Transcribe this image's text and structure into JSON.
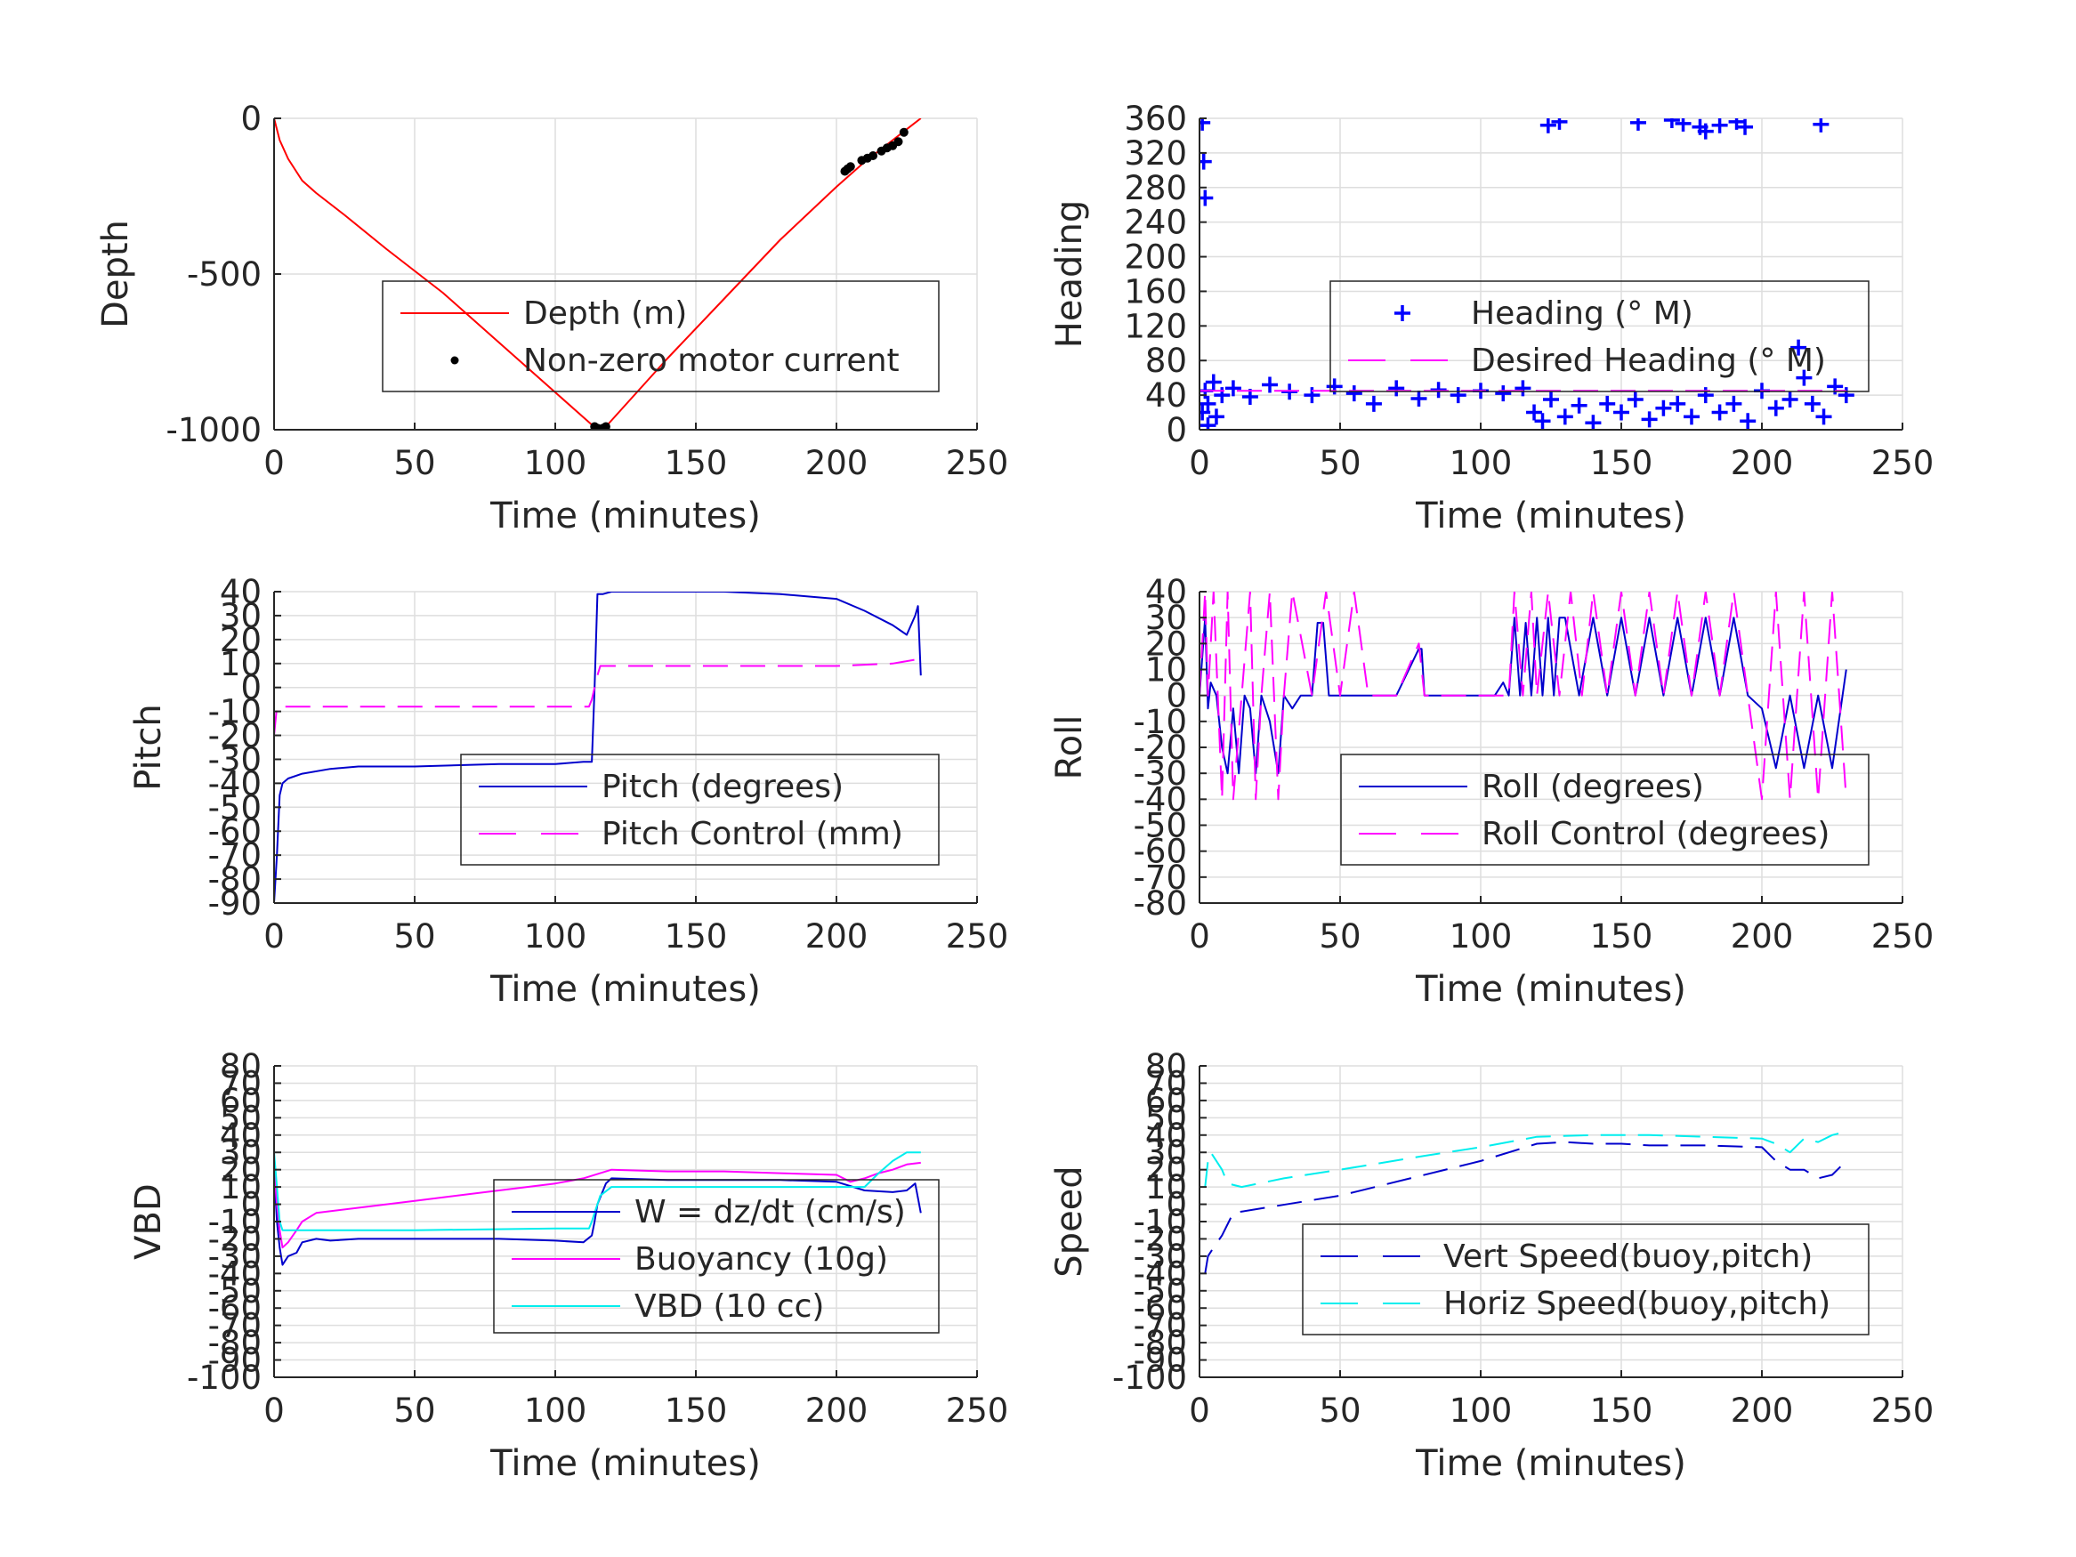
{
  "chart_data": [
    {
      "type": "line",
      "xlabel": "Time (minutes)",
      "ylabel": "Depth",
      "xlim": [
        0,
        250
      ],
      "ylim": [
        -1000,
        0
      ],
      "yticks": [
        0,
        -500,
        -1000
      ],
      "xticks": [
        0,
        50,
        100,
        150,
        200,
        250
      ],
      "grid": true,
      "legend_position": "bottom-right",
      "series": [
        {
          "name": "Depth (m)",
          "style": "solid",
          "color": "#ff0000",
          "x": [
            0,
            2,
            5,
            10,
            15,
            25,
            40,
            60,
            80,
            100,
            110,
            115,
            118,
            125,
            140,
            160,
            180,
            200,
            210,
            220,
            230
          ],
          "y": [
            0,
            -70,
            -130,
            -200,
            -240,
            -310,
            -420,
            -560,
            -720,
            -880,
            -960,
            -1000,
            -990,
            -920,
            -770,
            -580,
            -390,
            -220,
            -140,
            -70,
            0
          ]
        },
        {
          "name": "Non-zero motor current",
          "style": "markers",
          "color": "#000000",
          "x": [
            114,
            115,
            116,
            117,
            118,
            203,
            204,
            205,
            209,
            211,
            213,
            216,
            218,
            220,
            222,
            224
          ],
          "y": [
            -990,
            -995,
            -998,
            -995,
            -990,
            -170,
            -162,
            -155,
            -135,
            -128,
            -120,
            -105,
            -95,
            -88,
            -75,
            -45
          ]
        }
      ]
    },
    {
      "type": "scatter",
      "xlabel": "Time (minutes)",
      "ylabel": "Heading",
      "xlim": [
        0,
        250
      ],
      "ylim": [
        0,
        360
      ],
      "yticks": [
        0,
        40,
        80,
        120,
        160,
        200,
        240,
        280,
        320,
        360
      ],
      "xticks": [
        0,
        50,
        100,
        150,
        200,
        250
      ],
      "grid": true,
      "legend_position": "center-right",
      "series": [
        {
          "name": "Heading (° M)",
          "style": "markers-plus",
          "color": "#0000ff",
          "x": [
            1,
            1.5,
            2,
            1,
            2,
            3,
            5,
            8,
            12,
            18,
            25,
            32,
            40,
            48,
            55,
            62,
            70,
            78,
            85,
            92,
            100,
            108,
            115,
            119,
            122,
            125,
            130,
            135,
            140,
            145,
            150,
            155,
            160,
            165,
            170,
            175,
            180,
            185,
            190,
            195,
            200,
            205,
            210,
            213,
            215,
            218,
            222,
            226,
            230,
            124,
            128,
            156,
            168,
            172,
            178,
            180,
            185,
            191,
            194,
            221,
            3,
            6
          ],
          "y": [
            355,
            310,
            268,
            20,
            45,
            30,
            55,
            40,
            48,
            38,
            52,
            44,
            40,
            50,
            42,
            30,
            48,
            36,
            46,
            40,
            45,
            42,
            48,
            20,
            10,
            35,
            15,
            28,
            8,
            30,
            20,
            35,
            12,
            25,
            30,
            15,
            40,
            20,
            30,
            10,
            45,
            25,
            35,
            95,
            60,
            30,
            15,
            50,
            40,
            352,
            356,
            355,
            358,
            354,
            350,
            345,
            352,
            356,
            350,
            353,
            5,
            15
          ]
        },
        {
          "name": "Desired Heading (° M)",
          "style": "dashed",
          "color": "#ff00ff",
          "x": [
            0,
            230
          ],
          "y": [
            45,
            45
          ]
        }
      ]
    },
    {
      "type": "line",
      "xlabel": "Time (minutes)",
      "ylabel": "Pitch",
      "xlim": [
        0,
        250
      ],
      "ylim": [
        -90,
        40
      ],
      "yticks": [
        40,
        30,
        20,
        10,
        0,
        -10,
        -20,
        -30,
        -40,
        -50,
        -60,
        -70,
        -80,
        -90
      ],
      "xticks": [
        0,
        50,
        100,
        150,
        200,
        250
      ],
      "grid": true,
      "legend_position": "bottom-right",
      "series": [
        {
          "name": "Pitch (degrees)",
          "style": "solid",
          "color": "#0000cc",
          "x": [
            0,
            1,
            2,
            3,
            5,
            10,
            20,
            30,
            50,
            80,
            100,
            110,
            112,
            113,
            114,
            115,
            117,
            120,
            140,
            160,
            180,
            200,
            210,
            220,
            225,
            228,
            229,
            230
          ],
          "y": [
            -90,
            -70,
            -45,
            -40,
            -38,
            -36,
            -34,
            -33,
            -33,
            -32,
            -32,
            -31,
            -31,
            -31,
            0,
            39,
            39,
            40,
            40,
            40,
            39,
            37,
            32,
            26,
            22,
            30,
            34,
            5
          ]
        },
        {
          "name": "Pitch Control (mm)",
          "style": "dashed",
          "color": "#ff00ff",
          "x": [
            0,
            1,
            2,
            3,
            50,
            100,
            112,
            113,
            114,
            115,
            116,
            120,
            150,
            200,
            220,
            230
          ],
          "y": [
            -20,
            -8,
            -8,
            -8,
            -8,
            -8,
            -8,
            -5,
            0,
            5,
            9,
            9,
            9,
            9,
            10,
            12
          ]
        }
      ]
    },
    {
      "type": "line",
      "xlabel": "Time (minutes)",
      "ylabel": "Roll",
      "xlim": [
        0,
        250
      ],
      "ylim": [
        -80,
        40
      ],
      "yticks": [
        40,
        30,
        20,
        10,
        0,
        -10,
        -20,
        -30,
        -40,
        -50,
        -60,
        -70,
        -80
      ],
      "xticks": [
        0,
        50,
        100,
        150,
        200,
        250
      ],
      "grid": true,
      "legend_position": "bottom-right",
      "series": [
        {
          "name": "Roll (degrees)",
          "style": "solid",
          "color": "#0000cc",
          "x": [
            0,
            2,
            3,
            4,
            6,
            8,
            10,
            12,
            14,
            16,
            18,
            20,
            22,
            25,
            28,
            30,
            33,
            36,
            40,
            42,
            44,
            46,
            50,
            60,
            70,
            78,
            79,
            80,
            90,
            100,
            105,
            108,
            110,
            112,
            114,
            116,
            118,
            120,
            122,
            124,
            126,
            128,
            130,
            135,
            140,
            145,
            150,
            155,
            160,
            165,
            170,
            175,
            180,
            185,
            190,
            195,
            200,
            205,
            210,
            215,
            220,
            225,
            230
          ],
          "y": [
            0,
            30,
            -5,
            5,
            0,
            -20,
            -30,
            -5,
            -30,
            0,
            -5,
            -30,
            0,
            -10,
            -30,
            0,
            -5,
            0,
            0,
            28,
            28,
            0,
            0,
            0,
            0,
            18,
            18,
            0,
            0,
            0,
            0,
            5,
            0,
            30,
            0,
            28,
            0,
            30,
            0,
            30,
            0,
            30,
            30,
            0,
            30,
            0,
            30,
            0,
            30,
            0,
            30,
            0,
            30,
            0,
            30,
            0,
            -5,
            -28,
            0,
            -28,
            0,
            -28,
            10
          ]
        },
        {
          "name": "Roll Control (degrees)",
          "style": "dashed",
          "color": "#ff00ff",
          "x": [
            0,
            2,
            3,
            5,
            8,
            10,
            12,
            15,
            18,
            20,
            22,
            25,
            28,
            30,
            33,
            40,
            45,
            50,
            55,
            60,
            70,
            78,
            80,
            90,
            100,
            110,
            112,
            115,
            118,
            120,
            124,
            128,
            132,
            136,
            140,
            145,
            150,
            155,
            160,
            165,
            170,
            175,
            180,
            185,
            190,
            195,
            200,
            205,
            210,
            215,
            220,
            225,
            230
          ],
          "y": [
            0,
            40,
            0,
            40,
            -40,
            40,
            -40,
            0,
            40,
            -40,
            0,
            40,
            -40,
            0,
            40,
            0,
            40,
            0,
            40,
            0,
            0,
            20,
            0,
            0,
            0,
            0,
            40,
            0,
            40,
            0,
            40,
            0,
            40,
            0,
            40,
            0,
            40,
            0,
            40,
            0,
            40,
            0,
            40,
            0,
            40,
            0,
            -40,
            40,
            -40,
            40,
            -40,
            40,
            -40
          ]
        }
      ]
    },
    {
      "type": "line",
      "xlabel": "Time (minutes)",
      "ylabel": "VBD",
      "xlim": [
        0,
        250
      ],
      "ylim": [
        -100,
        80
      ],
      "yticks": [
        80,
        70,
        60,
        50,
        40,
        30,
        20,
        10,
        0,
        -10,
        -20,
        -30,
        -40,
        -50,
        -60,
        -70,
        -80,
        -90,
        -100
      ],
      "xticks": [
        0,
        50,
        100,
        150,
        200,
        250
      ],
      "grid": true,
      "legend_position": "bottom-right",
      "series": [
        {
          "name": "W = dz/dt (cm/s)",
          "style": "solid",
          "color": "#0000cc",
          "x": [
            0,
            1,
            2,
            3,
            5,
            8,
            10,
            15,
            20,
            30,
            50,
            80,
            100,
            110,
            113,
            114,
            115,
            118,
            120,
            140,
            160,
            180,
            200,
            210,
            220,
            225,
            228,
            230
          ],
          "y": [
            20,
            -10,
            -25,
            -35,
            -30,
            -28,
            -22,
            -20,
            -21,
            -20,
            -20,
            -20,
            -21,
            -22,
            -18,
            -10,
            0,
            12,
            15,
            14,
            14,
            14,
            13,
            8,
            7,
            8,
            12,
            -5
          ]
        },
        {
          "name": "Buoyancy (10g)",
          "style": "solid",
          "color": "#ff00ff",
          "x": [
            0,
            1,
            2,
            3,
            5,
            8,
            10,
            15,
            50,
            80,
            100,
            110,
            120,
            140,
            160,
            180,
            200,
            205,
            210,
            215,
            220,
            225,
            230
          ],
          "y": [
            20,
            0,
            -15,
            -25,
            -22,
            -15,
            -10,
            -5,
            2,
            8,
            12,
            15,
            20,
            19,
            19,
            18,
            17,
            13,
            15,
            18,
            20,
            23,
            24
          ]
        },
        {
          "name": "VBD (10 cc)",
          "style": "solid",
          "color": "#00eeee",
          "x": [
            0,
            1,
            2,
            3,
            5,
            8,
            15,
            50,
            100,
            112,
            113,
            114,
            116,
            120,
            150,
            200,
            210,
            215,
            220,
            225,
            230
          ],
          "y": [
            30,
            10,
            -10,
            -15,
            -15,
            -15,
            -15,
            -15,
            -14,
            -14,
            -10,
            -5,
            5,
            10,
            10,
            10,
            10,
            18,
            25,
            30,
            30
          ]
        }
      ]
    },
    {
      "type": "line",
      "xlabel": "Time (minutes)",
      "ylabel": "Speed",
      "xlim": [
        0,
        250
      ],
      "ylim": [
        -100,
        80
      ],
      "yticks": [
        80,
        70,
        60,
        50,
        40,
        30,
        20,
        10,
        0,
        -10,
        -20,
        -30,
        -40,
        -50,
        -60,
        -70,
        -80,
        -90,
        -100
      ],
      "xticks": [
        0,
        50,
        100,
        150,
        200,
        250
      ],
      "grid": true,
      "legend_position": "bottom-right",
      "series": [
        {
          "name": "Vert Speed(buoy,pitch)",
          "style": "dashed",
          "color": "#0000cc",
          "x": [
            2,
            3,
            5,
            8,
            12,
            50,
            100,
            120,
            130,
            140,
            150,
            160,
            180,
            200,
            205,
            210,
            215,
            220,
            225,
            230
          ],
          "y": [
            -40,
            -30,
            -25,
            -18,
            -5,
            5,
            25,
            35,
            36,
            35,
            35,
            34,
            34,
            33,
            25,
            20,
            20,
            15,
            17,
            25
          ]
        },
        {
          "name": "Horiz Speed(buoy,pitch)",
          "style": "dashed",
          "color": "#00eeee",
          "x": [
            2,
            3,
            4,
            6,
            8,
            10,
            15,
            30,
            50,
            80,
            100,
            120,
            140,
            160,
            180,
            200,
            205,
            210,
            215,
            220,
            225,
            230
          ],
          "y": [
            10,
            25,
            30,
            25,
            20,
            12,
            10,
            15,
            20,
            28,
            33,
            39,
            40,
            40,
            39,
            38,
            35,
            30,
            38,
            36,
            40,
            42
          ]
        }
      ]
    }
  ]
}
